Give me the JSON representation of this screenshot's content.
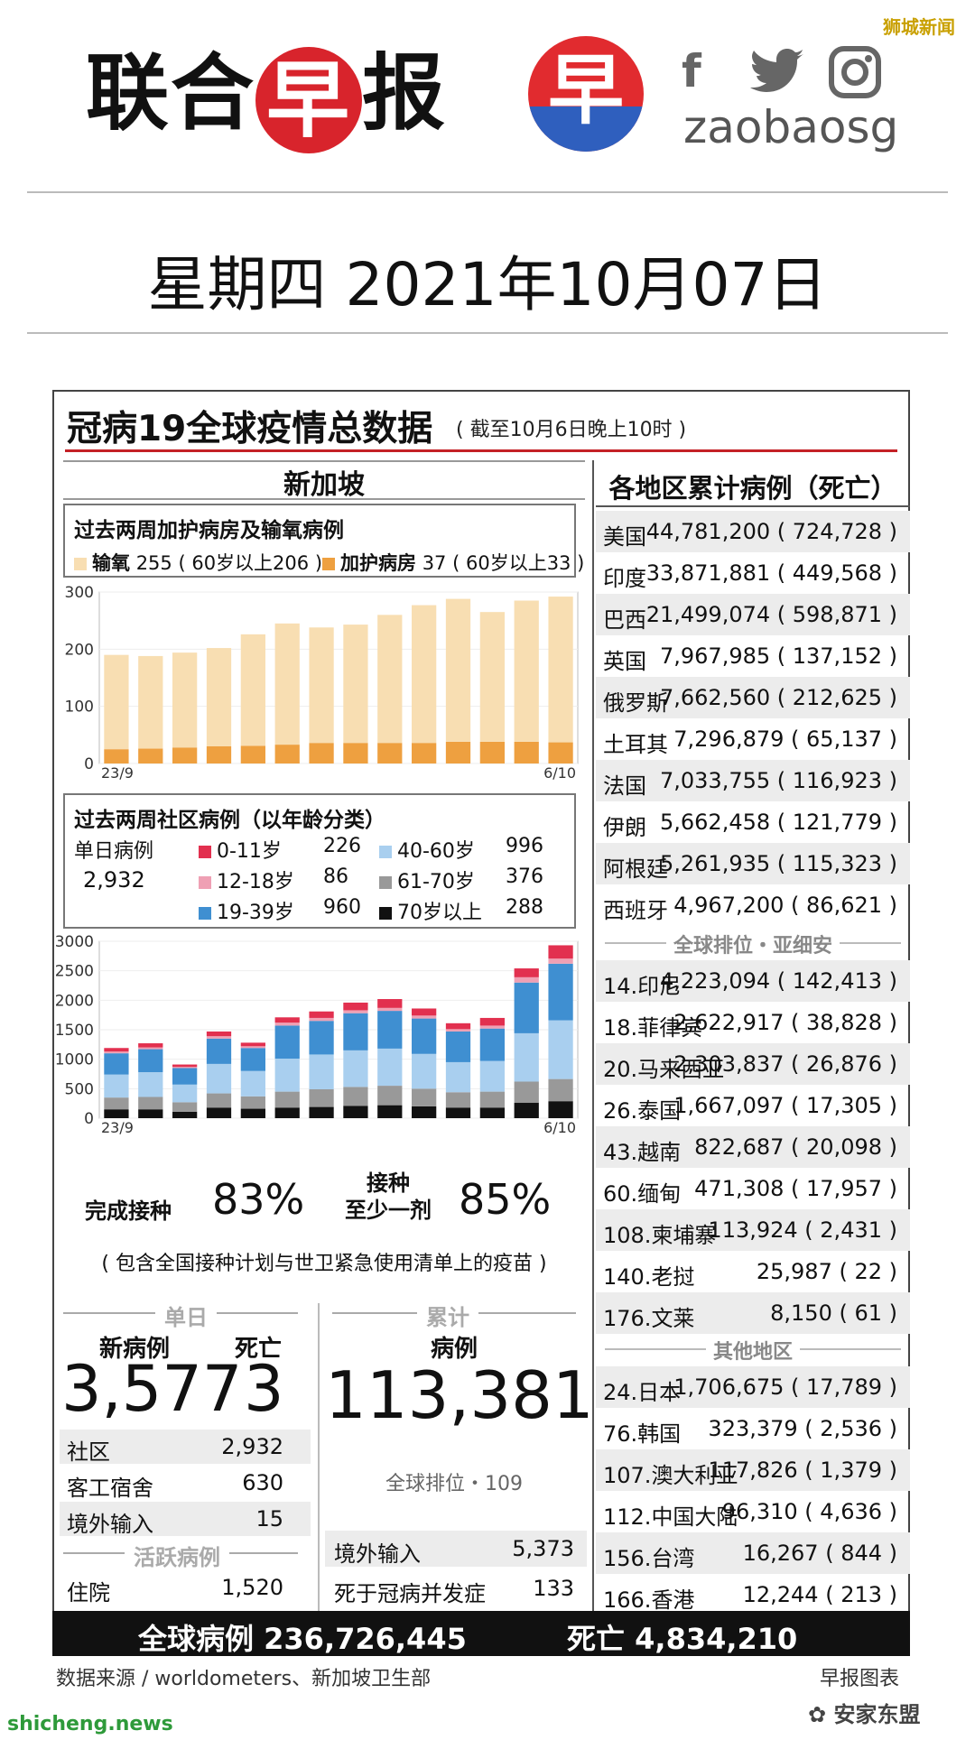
{
  "watermarks": {
    "top_right": "狮城新闻",
    "bottom_left": "shicheng.news",
    "bottom_right": "安家东盟"
  },
  "masthead": {
    "logo_chars": [
      "联",
      "合",
      "早",
      "报"
    ],
    "logo_char_red": "早",
    "social_icons": [
      "facebook-icon",
      "twitter-icon",
      "instagram-icon"
    ],
    "handle": "zaobaosg"
  },
  "date": "星期四  2021年10月07日",
  "panel": {
    "title": "冠病19全球疫情总数据",
    "subtitle": "( 截至10月6日晚上10时 )"
  },
  "singapore": {
    "heading": "新加坡",
    "icu_box": {
      "title": "过去两周加护病房及输氧病例",
      "legend": [
        {
          "label": "输氧",
          "value": "255",
          "detail": "( 60岁以上206 )",
          "color": "#f8deb2"
        },
        {
          "label": "加护病房",
          "value": "37",
          "detail": "( 60岁以上33 )",
          "color": "#eea040"
        }
      ]
    },
    "community_box": {
      "title": "过去两周社区病例（以年龄分类）",
      "daily_label": "单日病例",
      "daily_value": "2,932",
      "legend": [
        {
          "label": "0-11岁",
          "value": "226",
          "color": "#e2304f"
        },
        {
          "label": "12-18岁",
          "value": "86",
          "color": "#efa0b4"
        },
        {
          "label": "19-39岁",
          "value": "960",
          "color": "#3f8fd1"
        },
        {
          "label": "40-60岁",
          "value": "996",
          "color": "#a9cfef"
        },
        {
          "label": "61-70岁",
          "value": "376",
          "color": "#999999"
        },
        {
          "label": "70岁以上",
          "value": "288",
          "color": "#111111"
        }
      ]
    },
    "vaccination": {
      "full_label": "完成接种",
      "full_value": "83%",
      "one_label_l1": "接种",
      "one_label_l2": "至少一剂",
      "one_value": "85%",
      "note": "( 包含全国接种计划与世卫紧急使用清单上的疫苗 )"
    },
    "daily": {
      "heading": "单日",
      "new_label": "新病例",
      "new_value": "3,577",
      "death_label": "死亡",
      "death_value": "3",
      "rows": [
        {
          "label": "社区",
          "value": "2,932"
        },
        {
          "label": "客工宿舍",
          "value": "630"
        },
        {
          "label": "境外输入",
          "value": "15"
        }
      ],
      "active_heading": "活跃病例",
      "hosp_label": "住院",
      "hosp_value": "1,520"
    },
    "cumulative": {
      "heading": "累计",
      "cases_label": "病例",
      "cases_value": "113,381",
      "rank": "全球排位・109",
      "rows": [
        {
          "label": "境外输入",
          "value": "5,373"
        },
        {
          "label": "死于冠病并发症",
          "value": "133"
        }
      ]
    }
  },
  "regions": {
    "heading": "各地区累计病例（死亡）",
    "top": [
      {
        "name": "美国",
        "value": "44,781,200 ( 724,728 )"
      },
      {
        "name": "印度",
        "value": "33,871,881 ( 449,568 )"
      },
      {
        "name": "巴西",
        "value": "21,499,074 ( 598,871 )"
      },
      {
        "name": "英国",
        "value": "7,967,985 ( 137,152 )"
      },
      {
        "name": "俄罗斯",
        "value": "7,662,560 ( 212,625 )"
      },
      {
        "name": "土耳其",
        "value": "7,296,879 ( 65,137 )"
      },
      {
        "name": "法国",
        "value": "7,033,755 ( 116,923 )"
      },
      {
        "name": "伊朗",
        "value": "5,662,458 ( 121,779 )"
      },
      {
        "name": "阿根廷",
        "value": "5,261,935 ( 115,323 )"
      },
      {
        "name": "西班牙",
        "value": "4,967,200 ( 86,621 )"
      }
    ],
    "asean_heading": "全球排位・亚细安",
    "asean": [
      {
        "name": "14.印尼",
        "value": "4,223,094 ( 142,413 )"
      },
      {
        "name": "18.菲律宾",
        "value": "2,622,917 ( 38,828 )"
      },
      {
        "name": "20.马来西亚",
        "value": "2,303,837 ( 26,876 )"
      },
      {
        "name": "26.泰国",
        "value": "1,667,097 ( 17,305 )"
      },
      {
        "name": "43.越南",
        "value": "822,687 ( 20,098 )"
      },
      {
        "name": "60.缅甸",
        "value": "471,308 ( 17,957 )"
      },
      {
        "name": "108.柬埔寨",
        "value": "113,924 ( 2,431 )"
      },
      {
        "name": "140.老挝",
        "value": "25,987 ( 22 )"
      },
      {
        "name": "176.文莱",
        "value": "8,150 ( 61 )"
      }
    ],
    "other_heading": "其他地区",
    "other": [
      {
        "name": "24.日本",
        "value": "1,706,675 ( 17,789 )"
      },
      {
        "name": "76.韩国",
        "value": "323,379 ( 2,536 )"
      },
      {
        "name": "107.澳大利亚",
        "value": "117,826 ( 1,379 )"
      },
      {
        "name": "112.中国大陆",
        "value": "96,310 ( 4,636 )"
      },
      {
        "name": "156.台湾",
        "value": "16,267 ( 844 )"
      },
      {
        "name": "166.香港",
        "value": "12,244 ( 213 )"
      }
    ]
  },
  "footer": {
    "global_cases": "全球病例 236,726,445",
    "global_deaths": "死亡 4,834,210",
    "source": "数据来源 / worldometers、新加坡卫生部",
    "credit": "早报图表"
  },
  "chart_data": [
    {
      "type": "bar",
      "stacked": true,
      "title": "过去两周加护病房及输氧病例",
      "x_start": "23/9",
      "x_end": "6/10",
      "ylim": [
        0,
        300
      ],
      "yticks": [
        0,
        100,
        200,
        300
      ],
      "series": [
        {
          "name": "加护病房",
          "color": "#eea040",
          "values": [
            25,
            26,
            28,
            30,
            31,
            33,
            36,
            36,
            36,
            36,
            38,
            38,
            38,
            37
          ]
        },
        {
          "name": "输氧",
          "color": "#f8deb2",
          "values": [
            165,
            162,
            166,
            172,
            195,
            212,
            202,
            207,
            224,
            241,
            250,
            227,
            247,
            255
          ]
        }
      ]
    },
    {
      "type": "bar",
      "stacked": true,
      "title": "过去两周社区病例（以年龄分类）",
      "x_start": "23/9",
      "x_end": "6/10",
      "ylim": [
        0,
        3000
      ],
      "yticks": [
        0,
        500,
        1000,
        1500,
        2000,
        2500,
        3000
      ],
      "series": [
        {
          "name": "70岁以上",
          "color": "#111111",
          "values": [
            150,
            150,
            110,
            180,
            160,
            180,
            190,
            210,
            220,
            200,
            180,
            180,
            260,
            288
          ]
        },
        {
          "name": "61-70岁",
          "color": "#999999",
          "values": [
            200,
            210,
            160,
            240,
            210,
            270,
            300,
            320,
            330,
            300,
            260,
            270,
            360,
            376
          ]
        },
        {
          "name": "40-60岁",
          "color": "#a9cfef",
          "values": [
            390,
            420,
            300,
            500,
            430,
            560,
            590,
            620,
            630,
            590,
            510,
            520,
            820,
            996
          ]
        },
        {
          "name": "19-39岁",
          "color": "#3f8fd1",
          "values": [
            360,
            390,
            280,
            430,
            390,
            560,
            570,
            630,
            640,
            600,
            520,
            550,
            860,
            960
          ]
        },
        {
          "name": "12-18岁",
          "color": "#efa0b4",
          "values": [
            30,
            30,
            20,
            40,
            30,
            50,
            50,
            50,
            50,
            50,
            40,
            50,
            90,
            86
          ]
        },
        {
          "name": "0-11岁",
          "color": "#e2304f",
          "values": [
            60,
            70,
            40,
            80,
            60,
            90,
            110,
            130,
            150,
            120,
            100,
            130,
            150,
            226
          ]
        }
      ]
    }
  ]
}
